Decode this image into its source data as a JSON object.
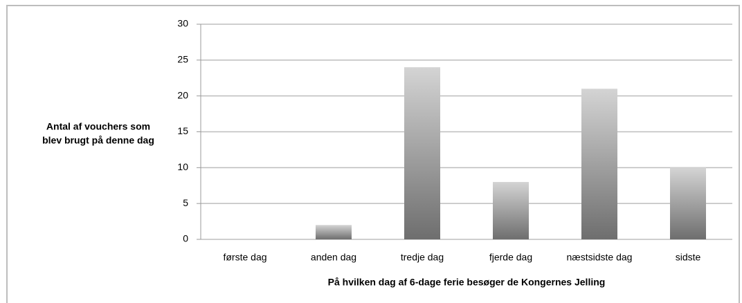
{
  "chart_data": {
    "type": "bar",
    "ylabel": [
      "Antal af vouchers som",
      "blev brugt på denne dag"
    ],
    "xlabel": "På hvilken dag af 6-dage ferie besøger de Kongernes Jelling",
    "categories": [
      "første dag",
      "anden dag",
      "tredje dag",
      "fjerde dag",
      "næstsidste dag",
      "sidste"
    ],
    "values": [
      0,
      2,
      24,
      8,
      21,
      10
    ],
    "ylim": [
      0,
      30
    ],
    "yticks": [
      0,
      5,
      10,
      15,
      20,
      25,
      30
    ],
    "grid": true
  }
}
